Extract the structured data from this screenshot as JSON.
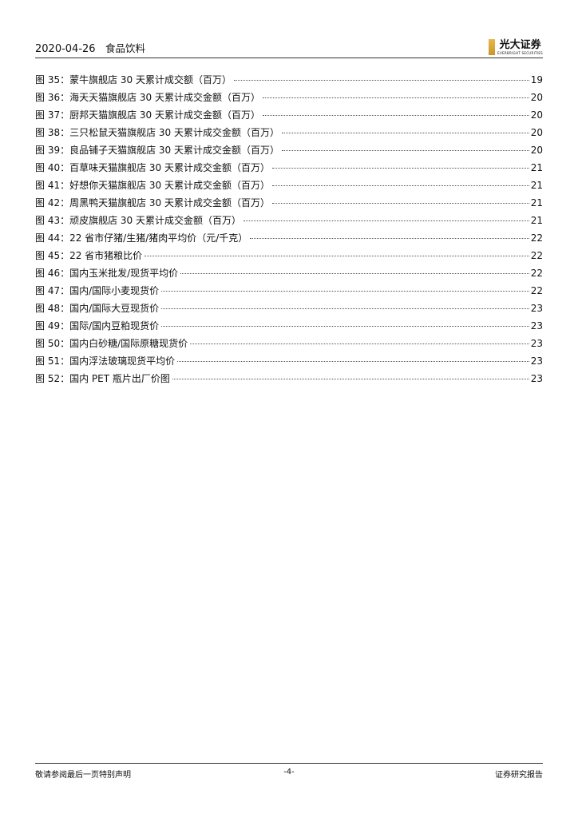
{
  "header": {
    "date": "2020-04-26",
    "industry": "食品饮料",
    "logo_cn": "光大证券",
    "logo_en": "EVERBRIGHT SECURITIES"
  },
  "toc": [
    {
      "label": "图 35：蒙牛旗舰店 30 天累计成交额（百万）",
      "page": "19"
    },
    {
      "label": "图 36：海天天猫旗舰店 30 天累计成交金额（百万）",
      "page": "20"
    },
    {
      "label": "图 37：厨邦天猫旗舰店 30 天累计成交金额（百万）",
      "page": "20"
    },
    {
      "label": "图 38：三只松鼠天猫旗舰店 30 天累计成交金额（百万）",
      "page": "20"
    },
    {
      "label": "图 39：良品铺子天猫旗舰店 30 天累计成交金额（百万）",
      "page": "20"
    },
    {
      "label": "图 40：百草味天猫旗舰店 30 天累计成交金额（百万）",
      "page": "21"
    },
    {
      "label": "图 41：好想你天猫旗舰店 30 天累计成交金额（百万）",
      "page": "21"
    },
    {
      "label": "图 42：周黑鸭天猫旗舰店 30 天累计成交金额（百万）",
      "page": "21"
    },
    {
      "label": "图 43：顽皮旗舰店 30 天累计成交金额（百万）",
      "page": "21"
    },
    {
      "label": "图 44：22 省市仔猪/生猪/猪肉平均价（元/千克）",
      "page": "22"
    },
    {
      "label": "图 45：22 省市猪粮比价",
      "page": "22"
    },
    {
      "label": "图 46：国内玉米批发/现货平均价",
      "page": "22"
    },
    {
      "label": "图 47：国内/国际小麦现货价",
      "page": "22"
    },
    {
      "label": "图 48：国内/国际大豆现货价",
      "page": "23"
    },
    {
      "label": "图 49：国际/国内豆粕现货价",
      "page": "23"
    },
    {
      "label": "图 50：国内白砂糖/国际原糖现货价",
      "page": "23"
    },
    {
      "label": "图 51：国内浮法玻璃现货平均价",
      "page": "23"
    },
    {
      "label": "图 52：国内 PET 瓶片出厂价图",
      "page": "23"
    }
  ],
  "footer": {
    "left": "敬请参阅最后一页特别声明",
    "center": "-4-",
    "right": "证券研究报告"
  }
}
